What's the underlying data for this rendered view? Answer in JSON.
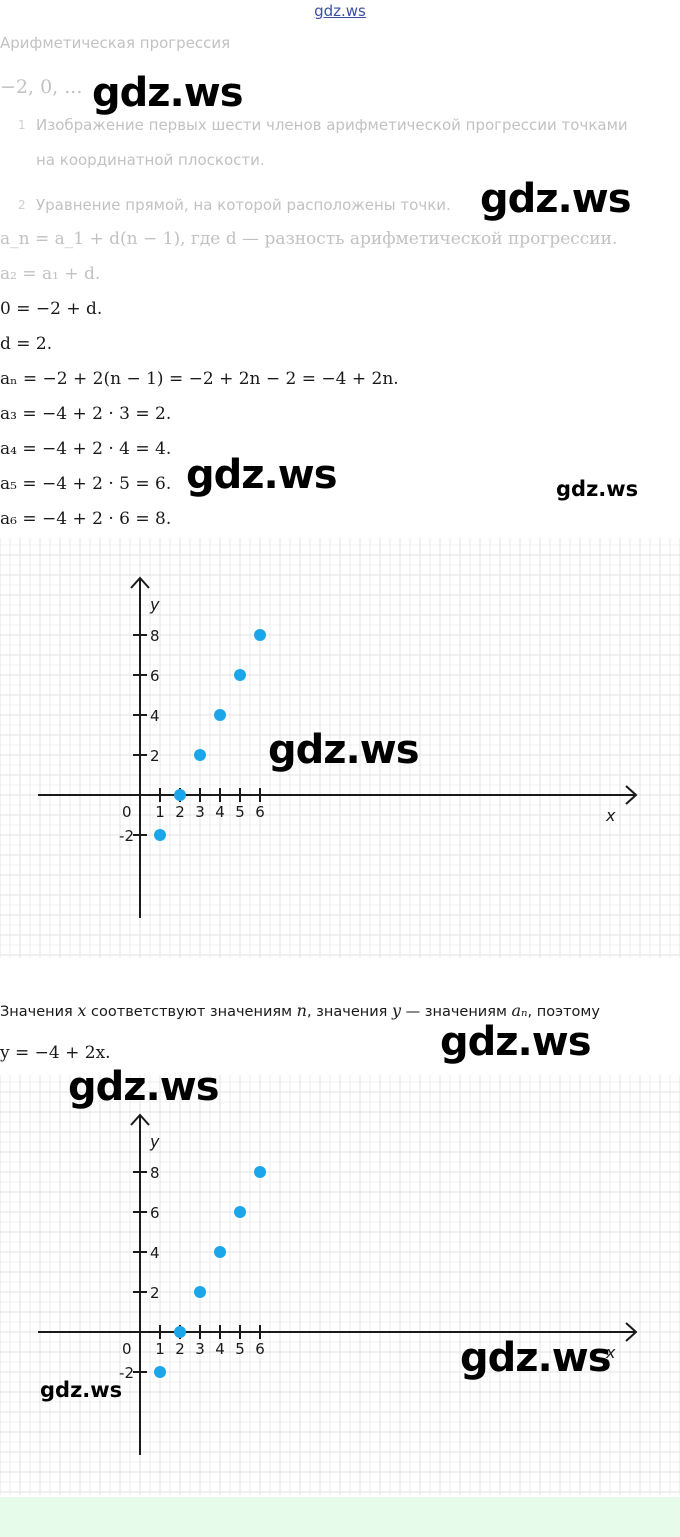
{
  "watermark_top": "gdz.ws",
  "watermark": "gdz.ws",
  "title": "Арифметическая прогрессия",
  "sequence": "−2,  0,  ...",
  "list": [
    {
      "num": "1",
      "line1": "Изображение первых шести членов арифметической прогрессии точками",
      "line2": "на координатной плоскости."
    },
    {
      "num": "2",
      "line1": "Уравнение прямой, на которой расположены точки."
    }
  ],
  "formula_general": "a_n = a_1 + d(n − 1), где d — разность арифметической прогрессии.",
  "formula_general_where": ", где",
  "formula_general_rest": " — разность арифметической прогрессии.",
  "steps": [
    "a₂ = a₁ + d.",
    "0 = −2 + d.",
    "d = 2.",
    "aₙ = −2 + 2(n − 1) = −2 + 2n − 2 = −4 + 2n.",
    "a₃ = −4 + 2 · 3 = 2.",
    "a₄ = −4 + 2 · 4 = 4.",
    "a₅ = −4 + 2 · 5 = 6.",
    "a₆ = −4 + 2 · 6 = 8."
  ],
  "note_part1": "Значения ",
  "note_x": "x",
  "note_part2": " соответствуют значениям ",
  "note_n": "n",
  "note_part3": ", значения ",
  "note_y": "y",
  "note_part4": " — значениям ",
  "note_an": "aₙ",
  "note_part5": ", поэтому",
  "equation": "y = −4 + 2x.",
  "colors": {
    "point": "#1aa6e8",
    "grid": "#e3e3e3",
    "axis": "#1a1a1a",
    "footer": "#e6fbea"
  },
  "chart_data": [
    {
      "type": "scatter",
      "xlabel": "x",
      "ylabel": "y",
      "origin_label": "0",
      "x_ticks": [
        "1",
        "2",
        "3",
        "4",
        "5",
        "6"
      ],
      "y_ticks": [
        "-2",
        "2",
        "4",
        "6",
        "8"
      ],
      "x": [
        1,
        2,
        3,
        4,
        5,
        6
      ],
      "y": [
        -2,
        0,
        2,
        4,
        6,
        8
      ],
      "grid": true
    },
    {
      "type": "scatter",
      "xlabel": "x",
      "ylabel": "y",
      "origin_label": "0",
      "x_ticks": [
        "1",
        "2",
        "3",
        "4",
        "5",
        "6"
      ],
      "y_ticks": [
        "-2",
        "2",
        "4",
        "6",
        "8"
      ],
      "x": [
        1,
        2,
        3,
        4,
        5,
        6
      ],
      "y": [
        -2,
        0,
        2,
        4,
        6,
        8
      ],
      "grid": true
    }
  ]
}
